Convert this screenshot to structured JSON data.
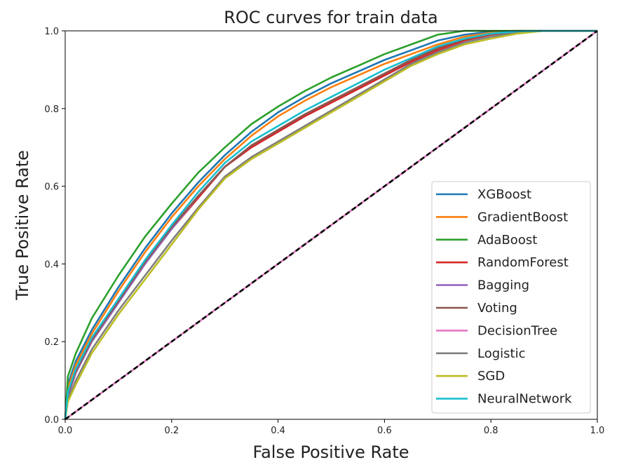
{
  "chart_data": {
    "type": "line",
    "title": "ROC curves for train data",
    "xlabel": "False Positive Rate",
    "ylabel": "True Positive Rate",
    "xlim": [
      0.0,
      1.0
    ],
    "ylim": [
      0.0,
      1.0
    ],
    "xticks": [
      "0.0",
      "0.2",
      "0.4",
      "0.6",
      "0.8",
      "1.0"
    ],
    "yticks": [
      "0.0",
      "0.2",
      "0.4",
      "0.6",
      "0.8",
      "1.0"
    ],
    "grid": false,
    "legend_position": "lower-right",
    "series": [
      {
        "name": "XGBoost",
        "color": "#1f77b4",
        "x": [
          0,
          0.005,
          0.02,
          0.05,
          0.1,
          0.15,
          0.2,
          0.25,
          0.3,
          0.35,
          0.4,
          0.45,
          0.5,
          0.55,
          0.6,
          0.65,
          0.7,
          0.75,
          0.8,
          0.85,
          0.9,
          1.0
        ],
        "y": [
          0,
          0.09,
          0.15,
          0.23,
          0.34,
          0.44,
          0.53,
          0.61,
          0.68,
          0.74,
          0.79,
          0.83,
          0.865,
          0.895,
          0.925,
          0.95,
          0.975,
          0.99,
          0.998,
          1.0,
          1.0,
          1.0
        ]
      },
      {
        "name": "GradientBoost",
        "color": "#ff7f0e",
        "x": [
          0,
          0.005,
          0.02,
          0.05,
          0.1,
          0.15,
          0.2,
          0.25,
          0.3,
          0.35,
          0.4,
          0.45,
          0.5,
          0.55,
          0.6,
          0.65,
          0.7,
          0.75,
          0.8,
          0.85,
          0.9,
          1.0
        ],
        "y": [
          0,
          0.08,
          0.14,
          0.22,
          0.33,
          0.43,
          0.52,
          0.6,
          0.67,
          0.73,
          0.78,
          0.82,
          0.855,
          0.885,
          0.915,
          0.94,
          0.965,
          0.985,
          0.995,
          1.0,
          1.0,
          1.0
        ]
      },
      {
        "name": "AdaBoost",
        "color": "#2ca02c",
        "x": [
          0,
          0.005,
          0.02,
          0.05,
          0.1,
          0.15,
          0.2,
          0.25,
          0.3,
          0.35,
          0.4,
          0.45,
          0.5,
          0.55,
          0.6,
          0.65,
          0.7,
          0.75,
          0.8,
          0.85,
          0.9,
          1.0
        ],
        "y": [
          0,
          0.11,
          0.17,
          0.26,
          0.37,
          0.47,
          0.555,
          0.635,
          0.7,
          0.76,
          0.805,
          0.845,
          0.88,
          0.91,
          0.94,
          0.965,
          0.99,
          1.0,
          1.0,
          1.0,
          1.0,
          1.0
        ]
      },
      {
        "name": "RandomForest",
        "color": "#d62728",
        "x": [
          0,
          0.005,
          0.02,
          0.05,
          0.1,
          0.15,
          0.2,
          0.25,
          0.3,
          0.35,
          0.4,
          0.45,
          0.5,
          0.55,
          0.6,
          0.65,
          0.7,
          0.75,
          0.8,
          0.85,
          0.9,
          1.0
        ],
        "y": [
          0,
          0.06,
          0.12,
          0.2,
          0.3,
          0.4,
          0.49,
          0.57,
          0.65,
          0.7,
          0.74,
          0.78,
          0.815,
          0.85,
          0.885,
          0.92,
          0.95,
          0.975,
          0.99,
          0.998,
          1.0,
          1.0
        ]
      },
      {
        "name": "Bagging",
        "color": "#9467bd",
        "x": [
          0,
          0.005,
          0.02,
          0.05,
          0.1,
          0.15,
          0.2,
          0.25,
          0.3,
          0.35,
          0.4,
          0.45,
          0.5,
          0.55,
          0.6,
          0.65,
          0.7,
          0.75,
          0.8,
          0.85,
          0.9,
          1.0
        ],
        "y": [
          0,
          0.06,
          0.12,
          0.2,
          0.3,
          0.4,
          0.49,
          0.575,
          0.65,
          0.705,
          0.745,
          0.785,
          0.82,
          0.855,
          0.89,
          0.925,
          0.955,
          0.98,
          0.992,
          0.998,
          1.0,
          1.0
        ]
      },
      {
        "name": "Voting",
        "color": "#8c564b",
        "x": [
          0,
          0.005,
          0.02,
          0.05,
          0.1,
          0.15,
          0.2,
          0.25,
          0.3,
          0.35,
          0.4,
          0.45,
          0.5,
          0.55,
          0.6,
          0.65,
          0.7,
          0.75,
          0.8,
          0.85,
          0.9,
          1.0
        ],
        "y": [
          0,
          0.065,
          0.125,
          0.205,
          0.305,
          0.405,
          0.495,
          0.575,
          0.65,
          0.705,
          0.745,
          0.785,
          0.82,
          0.855,
          0.89,
          0.925,
          0.955,
          0.978,
          0.992,
          0.998,
          1.0,
          1.0
        ]
      },
      {
        "name": "DecisionTree",
        "color": "#e377c2",
        "x": [
          0,
          1.0
        ],
        "y": [
          0,
          1.0
        ]
      },
      {
        "name": "Logistic",
        "color": "#7f7f7f",
        "x": [
          0,
          0.005,
          0.02,
          0.05,
          0.1,
          0.15,
          0.2,
          0.25,
          0.3,
          0.35,
          0.4,
          0.45,
          0.5,
          0.55,
          0.6,
          0.65,
          0.7,
          0.75,
          0.8,
          0.85,
          0.9,
          1.0
        ],
        "y": [
          0,
          0.05,
          0.1,
          0.18,
          0.28,
          0.37,
          0.46,
          0.545,
          0.625,
          0.675,
          0.715,
          0.755,
          0.795,
          0.835,
          0.875,
          0.915,
          0.945,
          0.97,
          0.985,
          0.995,
          1.0,
          1.0
        ]
      },
      {
        "name": "SGD",
        "color": "#bcbd22",
        "x": [
          0,
          0.005,
          0.02,
          0.05,
          0.1,
          0.15,
          0.2,
          0.25,
          0.3,
          0.35,
          0.4,
          0.45,
          0.5,
          0.55,
          0.6,
          0.65,
          0.7,
          0.75,
          0.8,
          0.85,
          0.9,
          1.0
        ],
        "y": [
          0,
          0.045,
          0.09,
          0.17,
          0.27,
          0.36,
          0.45,
          0.54,
          0.62,
          0.67,
          0.71,
          0.75,
          0.79,
          0.83,
          0.87,
          0.91,
          0.94,
          0.965,
          0.98,
          0.993,
          1.0,
          1.0
        ]
      },
      {
        "name": "NeuralNetwork",
        "color": "#17becf",
        "x": [
          0,
          0.005,
          0.02,
          0.05,
          0.1,
          0.15,
          0.2,
          0.25,
          0.3,
          0.35,
          0.4,
          0.45,
          0.5,
          0.55,
          0.6,
          0.65,
          0.7,
          0.75,
          0.8,
          0.85,
          0.9,
          1.0
        ],
        "y": [
          0,
          0.07,
          0.13,
          0.21,
          0.31,
          0.41,
          0.5,
          0.585,
          0.66,
          0.715,
          0.755,
          0.795,
          0.83,
          0.865,
          0.9,
          0.93,
          0.96,
          0.98,
          0.993,
          0.999,
          1.0,
          1.0
        ]
      }
    ],
    "reference_line": {
      "x": [
        0,
        1.0
      ],
      "y": [
        0,
        1.0
      ],
      "color": "#000000",
      "style": "dashed"
    }
  }
}
